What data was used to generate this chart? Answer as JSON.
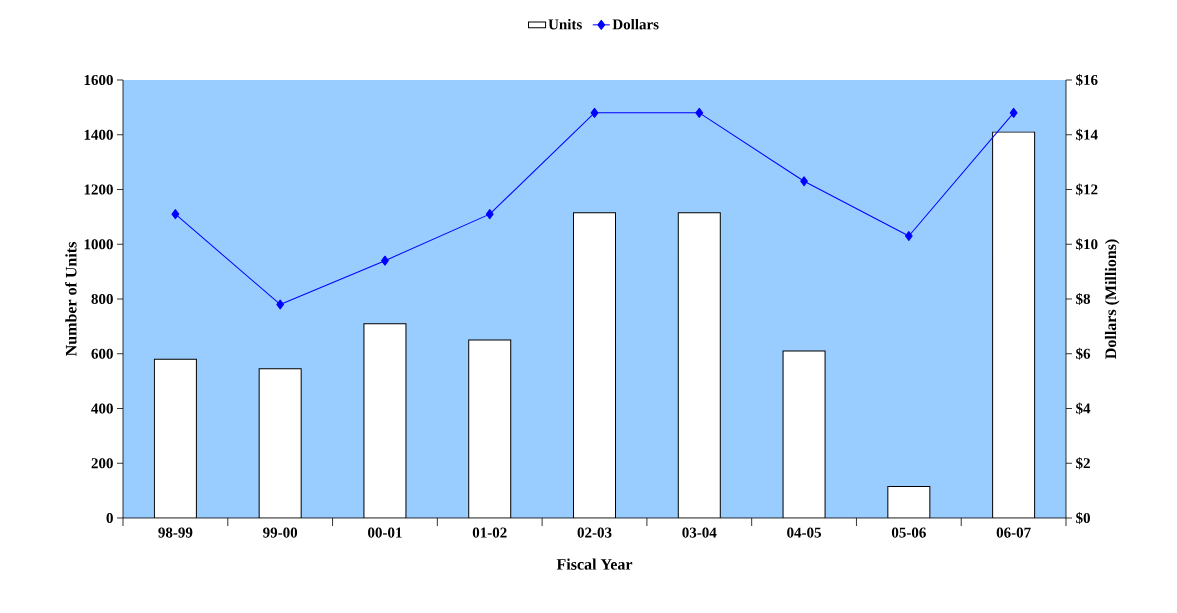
{
  "chart_data": {
    "type": "bar",
    "xlabel": "Fiscal Year",
    "ylabel": "Number of Units",
    "y2label": "Dollars (Millions)",
    "categories": [
      "98-99",
      "99-00",
      "00-01",
      "01-02",
      "02-03",
      "03-04",
      "04-05",
      "05-06",
      "06-07"
    ],
    "series": [
      {
        "name": "Units",
        "color": "#ffffff",
        "values": [
          580,
          545,
          710,
          650,
          1115,
          1115,
          610,
          115,
          1410
        ]
      },
      {
        "name": "Dollars",
        "type": "line",
        "axis": "y2",
        "color": "#0000ff",
        "marker": "diamond",
        "values": [
          11.1,
          7.8,
          9.4,
          11.1,
          14.8,
          14.8,
          12.3,
          10.3,
          14.8
        ]
      }
    ],
    "ylim": [
      0,
      1600
    ],
    "yticks": [
      0,
      200,
      400,
      600,
      800,
      1000,
      1200,
      1400,
      1600
    ],
    "y2lim": [
      0,
      16
    ],
    "y2ticks": [
      {
        "value": 0,
        "label": "$0"
      },
      {
        "value": 2,
        "label": "$2"
      },
      {
        "value": 4,
        "label": "$4"
      },
      {
        "value": 6,
        "label": "$6"
      },
      {
        "value": 8,
        "label": "$8"
      },
      {
        "value": 10,
        "label": "$10"
      },
      {
        "value": 12,
        "label": "$12"
      },
      {
        "value": 14,
        "label": "$14"
      },
      {
        "value": 16,
        "label": "$16"
      }
    ],
    "legend": "top",
    "grid": false
  }
}
